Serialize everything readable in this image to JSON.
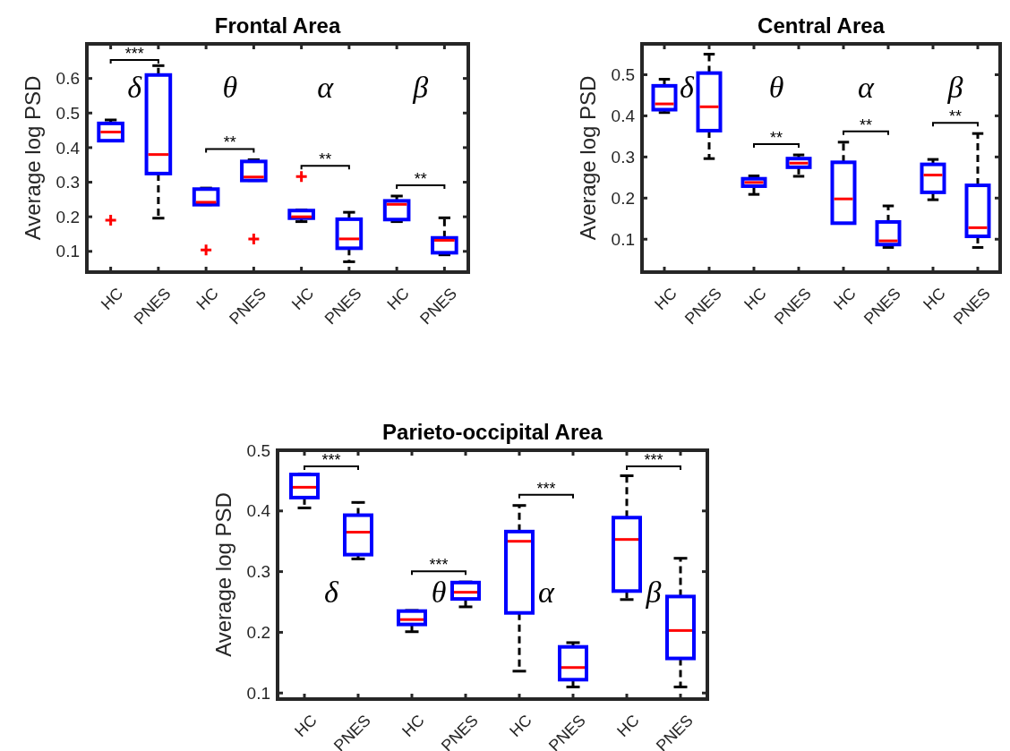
{
  "chart_data": [
    {
      "type": "box",
      "title": "Frontal Area",
      "ylabel": "Average log PSD",
      "categories": [
        "HC",
        "PNES",
        "HC",
        "PNES",
        "HC",
        "PNES",
        "HC",
        "PNES"
      ],
      "ylim": [
        0.04,
        0.7
      ],
      "yticks": [
        0.1,
        0.2,
        0.3,
        0.4,
        0.5,
        0.6
      ],
      "color": "#0000ff",
      "boxes": [
        {
          "low": 0.42,
          "q1": 0.42,
          "median": 0.445,
          "q3": 0.47,
          "high": 0.48,
          "outliers": [
            0.19
          ]
        },
        {
          "low": 0.196,
          "q1": 0.325,
          "median": 0.38,
          "q3": 0.61,
          "high": 0.637
        },
        {
          "low": 0.235,
          "q1": 0.235,
          "median": 0.242,
          "q3": 0.28,
          "high": 0.283,
          "outliers": [
            0.104
          ]
        },
        {
          "low": 0.305,
          "q1": 0.305,
          "median": 0.315,
          "q3": 0.36,
          "high": 0.365,
          "outliers": [
            0.136
          ]
        },
        {
          "low": 0.186,
          "q1": 0.196,
          "median": 0.2,
          "q3": 0.218,
          "high": 0.22,
          "outliers": [
            0.316
          ]
        },
        {
          "low": 0.07,
          "q1": 0.109,
          "median": 0.136,
          "q3": 0.193,
          "high": 0.213
        },
        {
          "low": 0.186,
          "q1": 0.192,
          "median": 0.236,
          "q3": 0.246,
          "high": 0.26
        },
        {
          "low": 0.09,
          "q1": 0.096,
          "median": 0.132,
          "q3": 0.139,
          "high": 0.197
        }
      ],
      "annotations": [
        "δ",
        "θ",
        "α",
        "β",
        "***",
        "**",
        "**",
        "**"
      ]
    },
    {
      "type": "box",
      "title": "Central Area",
      "ylabel": "Average log PSD",
      "categories": [
        "HC",
        "PNES",
        "HC",
        "PNES",
        "HC",
        "PNES",
        "HC",
        "PNES"
      ],
      "ylim": [
        0.02,
        0.575
      ],
      "yticks": [
        0.1,
        0.2,
        0.3,
        0.4,
        0.5
      ],
      "color": "#0000ff",
      "boxes": [
        {
          "low": 0.408,
          "q1": 0.415,
          "median": 0.429,
          "q3": 0.473,
          "high": 0.489
        },
        {
          "low": 0.296,
          "q1": 0.364,
          "median": 0.422,
          "q3": 0.504,
          "high": 0.55
        },
        {
          "low": 0.209,
          "q1": 0.229,
          "median": 0.238,
          "q3": 0.247,
          "high": 0.254
        },
        {
          "low": 0.253,
          "q1": 0.275,
          "median": 0.285,
          "q3": 0.296,
          "high": 0.305
        },
        {
          "low": 0.139,
          "q1": 0.139,
          "median": 0.198,
          "q3": 0.287,
          "high": 0.336
        },
        {
          "low": 0.08,
          "q1": 0.087,
          "median": 0.096,
          "q3": 0.142,
          "high": 0.181
        },
        {
          "low": 0.196,
          "q1": 0.214,
          "median": 0.256,
          "q3": 0.282,
          "high": 0.294
        },
        {
          "low": 0.08,
          "q1": 0.107,
          "median": 0.128,
          "q3": 0.231,
          "high": 0.357
        }
      ],
      "annotations": [
        "δ",
        "θ",
        "α",
        "β",
        "**",
        "**",
        "**"
      ]
    },
    {
      "type": "box",
      "title": "Parieto-occipital Area",
      "ylabel": "Average log PSD",
      "categories": [
        "HC",
        "PNES",
        "HC",
        "PNES",
        "HC",
        "PNES",
        "HC",
        "PNES"
      ],
      "ylim": [
        0.09,
        0.5
      ],
      "yticks": [
        0.1,
        0.2,
        0.3,
        0.4,
        0.5
      ],
      "color": "#0000ff",
      "boxes": [
        {
          "low": 0.405,
          "q1": 0.422,
          "median": 0.439,
          "q3": 0.46,
          "high": 0.461
        },
        {
          "low": 0.321,
          "q1": 0.328,
          "median": 0.365,
          "q3": 0.393,
          "high": 0.414
        },
        {
          "low": 0.201,
          "q1": 0.213,
          "median": 0.221,
          "q3": 0.235,
          "high": 0.236
        },
        {
          "low": 0.242,
          "q1": 0.255,
          "median": 0.266,
          "q3": 0.282,
          "high": 0.283
        },
        {
          "low": 0.136,
          "q1": 0.232,
          "median": 0.35,
          "q3": 0.366,
          "high": 0.409
        },
        {
          "low": 0.11,
          "q1": 0.122,
          "median": 0.142,
          "q3": 0.176,
          "high": 0.183
        },
        {
          "low": 0.254,
          "q1": 0.268,
          "median": 0.353,
          "q3": 0.389,
          "high": 0.458
        },
        {
          "low": 0.11,
          "q1": 0.157,
          "median": 0.203,
          "q3": 0.259,
          "high": 0.322
        }
      ],
      "annotations": [
        "δ",
        "θ",
        "α",
        "β",
        "***",
        "***",
        "***",
        "***"
      ]
    }
  ]
}
